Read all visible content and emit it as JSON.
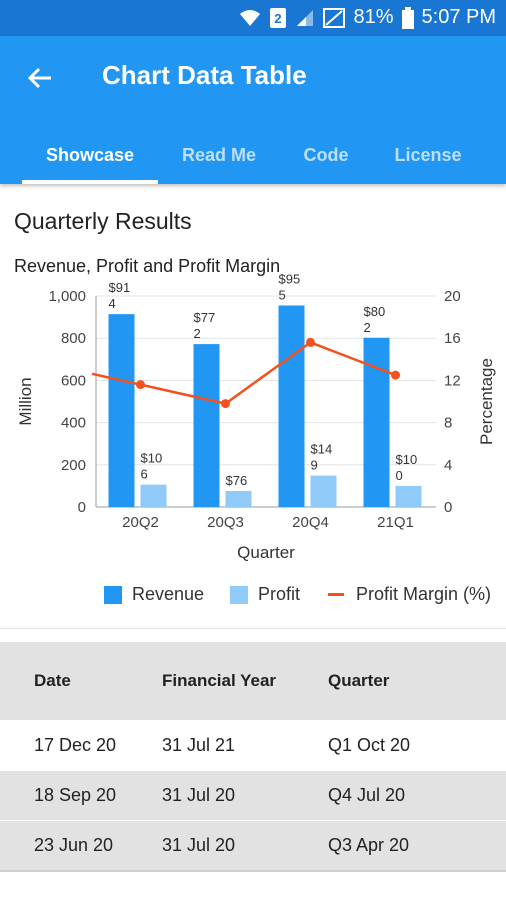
{
  "status_bar": {
    "battery": "81%",
    "time": "5:07 PM",
    "sim_slot": "2",
    "icons": [
      "wifi-icon",
      "sim-icon",
      "signal-icon",
      "no-signal-icon",
      "battery-icon"
    ]
  },
  "app_bar": {
    "title": "Chart Data Table",
    "back_icon": "arrow-left-icon"
  },
  "tabs": [
    {
      "label": "Showcase",
      "active": true
    },
    {
      "label": "Read Me",
      "active": false
    },
    {
      "label": "Code",
      "active": false
    },
    {
      "label": "License",
      "active": false
    }
  ],
  "section": {
    "title": "Quarterly Results"
  },
  "chart_data": {
    "type": "bar",
    "title": "Revenue, Profit and Profit Margin",
    "xlabel": "Quarter",
    "ylabel": "Million",
    "y2label": "Percentage",
    "categories": [
      "20Q2",
      "20Q3",
      "20Q4",
      "21Q1"
    ],
    "ylim": [
      0,
      1000
    ],
    "yticks": [
      "0",
      "200",
      "400",
      "600",
      "800",
      "1,000"
    ],
    "y2lim": [
      0,
      20
    ],
    "y2ticks": [
      "0",
      "4",
      "8",
      "12",
      "16",
      "20"
    ],
    "series": [
      {
        "name": "Revenue",
        "type": "bar",
        "values": [
          914,
          772,
          955,
          802
        ],
        "labels": [
          "$914",
          "$772",
          "$955",
          "$802"
        ],
        "color": "#2196F3"
      },
      {
        "name": "Profit",
        "type": "bar",
        "values": [
          106,
          76,
          149,
          100
        ],
        "labels": [
          "$106",
          "$76",
          "$149",
          "$100"
        ],
        "color": "#90CAF9"
      },
      {
        "name": "Profit Margin (%)",
        "type": "line",
        "axis": "y2",
        "values": [
          11.6,
          9.8,
          15.6,
          12.5
        ],
        "color": "#F4511E"
      }
    ],
    "legend_position": "bottom",
    "grid": true
  },
  "table": {
    "headers": [
      "Date",
      "Financial Year",
      "Quarter"
    ],
    "rows": [
      [
        "17 Dec 20",
        "31 Jul 21",
        "Q1 Oct 20"
      ],
      [
        "18 Sep 20",
        "31 Jul 20",
        "Q4 Jul 20"
      ],
      [
        "23 Jun 20",
        "31 Jul 20",
        "Q3 Apr 20"
      ]
    ]
  },
  "colors": {
    "primary": "#2196F3",
    "primary_dark": "#1976D2",
    "revenue": "#2196F3",
    "profit": "#90CAF9",
    "margin": "#F4511E"
  }
}
